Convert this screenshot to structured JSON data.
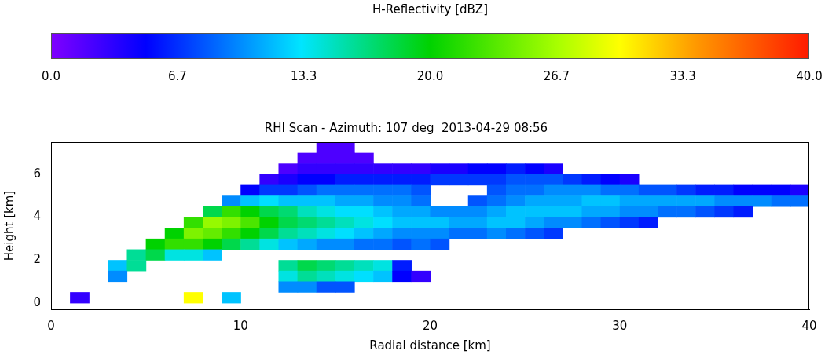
{
  "chart_data": {
    "type": "heatmap",
    "title": "RHI Scan - Azimuth: 107 deg  2013-04-29 08:56",
    "x_label": "Radial distance [km]",
    "y_label": "Height [km]",
    "xlim": [
      0,
      40
    ],
    "xticks": [
      0,
      10,
      20,
      30,
      40
    ],
    "ylim": [
      -0.3,
      7.5
    ],
    "yticks": [
      0,
      2,
      4,
      6
    ],
    "grid": false,
    "x": [
      0.5,
      1.5,
      2.5,
      3.5,
      4.5,
      5.5,
      6.5,
      7.5,
      8.5,
      9.5,
      10.5,
      11.5,
      12.5,
      13.5,
      14.5,
      15.5,
      16.5,
      17.5,
      18.5,
      19.5,
      20.5,
      21.5,
      22.5,
      23.5,
      24.5,
      25.5,
      26.5,
      27.5,
      28.5,
      29.5,
      30.5,
      31.5,
      32.5,
      33.5,
      34.5,
      35.5,
      36.5,
      37.5,
      38.5,
      39.5
    ],
    "y": [
      7.25,
      6.75,
      6.25,
      5.75,
      5.25,
      4.75,
      4.25,
      3.75,
      3.25,
      2.75,
      2.25,
      1.75,
      1.25,
      0.75,
      0.25
    ],
    "values": [
      [
        null,
        null,
        null,
        null,
        null,
        null,
        null,
        null,
        null,
        null,
        null,
        null,
        null,
        null,
        2,
        2,
        null,
        null,
        null,
        null,
        null,
        null,
        null,
        null,
        null,
        null,
        null,
        null,
        null,
        null,
        null,
        null,
        null,
        null,
        null,
        null,
        null,
        null,
        null,
        null
      ],
      [
        null,
        null,
        null,
        null,
        null,
        null,
        null,
        null,
        null,
        null,
        null,
        null,
        null,
        2,
        2,
        2,
        2,
        null,
        null,
        null,
        null,
        null,
        null,
        null,
        null,
        null,
        null,
        null,
        null,
        null,
        null,
        null,
        null,
        null,
        null,
        null,
        null,
        null,
        null,
        null
      ],
      [
        null,
        null,
        null,
        null,
        null,
        null,
        null,
        null,
        null,
        null,
        null,
        null,
        2,
        3,
        3,
        3,
        3,
        3,
        3,
        3,
        4,
        4,
        5,
        5,
        6,
        5,
        4,
        null,
        null,
        null,
        null,
        null,
        null,
        null,
        null,
        null,
        null,
        null,
        null,
        null
      ],
      [
        null,
        null,
        null,
        null,
        null,
        null,
        null,
        null,
        null,
        null,
        null,
        3,
        4,
        5,
        5,
        6,
        6,
        6,
        6,
        6,
        7,
        7,
        7,
        7,
        8,
        8,
        8,
        7,
        6,
        5,
        4,
        null,
        null,
        null,
        null,
        null,
        null,
        null,
        null,
        null
      ],
      [
        null,
        null,
        null,
        null,
        null,
        null,
        null,
        null,
        null,
        null,
        5,
        7,
        7,
        8,
        9,
        9,
        9,
        9,
        9,
        8,
        null,
        null,
        null,
        8,
        9,
        9,
        10,
        10,
        10,
        9,
        9,
        8,
        8,
        7,
        6,
        6,
        5,
        5,
        5,
        4
      ],
      [
        null,
        null,
        null,
        null,
        null,
        null,
        null,
        null,
        null,
        10,
        12,
        13,
        12,
        12,
        12,
        11,
        11,
        10,
        10,
        9,
        null,
        null,
        8,
        9,
        10,
        11,
        11,
        11,
        12,
        12,
        11,
        11,
        11,
        11,
        11,
        10,
        10,
        10,
        9,
        9
      ],
      [
        null,
        null,
        null,
        null,
        null,
        null,
        null,
        null,
        18,
        22,
        20,
        18,
        17,
        15,
        14,
        13,
        13,
        12,
        11,
        11,
        10,
        10,
        10,
        11,
        12,
        12,
        12,
        12,
        11,
        11,
        10,
        10,
        9,
        9,
        8,
        7,
        6,
        null,
        null,
        null
      ],
      [
        null,
        null,
        null,
        null,
        null,
        null,
        null,
        22,
        26,
        25,
        23,
        20,
        18,
        17,
        16,
        15,
        14,
        13,
        12,
        12,
        12,
        11,
        11,
        12,
        12,
        11,
        10,
        10,
        9,
        8,
        7,
        6,
        null,
        null,
        null,
        null,
        null,
        null,
        null,
        null
      ],
      [
        null,
        null,
        null,
        null,
        null,
        null,
        20,
        25,
        24,
        22,
        20,
        18,
        16,
        15,
        14,
        13,
        12,
        11,
        10,
        10,
        10,
        9,
        9,
        10,
        9,
        8,
        7,
        null,
        null,
        null,
        null,
        null,
        null,
        null,
        null,
        null,
        null,
        null,
        null,
        null
      ],
      [
        null,
        null,
        null,
        null,
        null,
        20,
        22,
        22,
        20,
        18,
        16,
        14,
        12,
        11,
        10,
        10,
        9,
        9,
        8,
        9,
        8,
        null,
        null,
        null,
        null,
        null,
        null,
        null,
        null,
        null,
        null,
        null,
        null,
        null,
        null,
        null,
        null,
        null,
        null,
        null
      ],
      [
        null,
        null,
        null,
        null,
        16,
        18,
        14,
        14,
        12,
        null,
        null,
        null,
        null,
        null,
        null,
        null,
        null,
        null,
        null,
        null,
        null,
        null,
        null,
        null,
        null,
        null,
        null,
        null,
        null,
        null,
        null,
        null,
        null,
        null,
        null,
        null,
        null,
        null,
        null,
        null
      ],
      [
        null,
        null,
        null,
        12,
        16,
        null,
        null,
        null,
        null,
        null,
        null,
        null,
        16,
        18,
        17,
        16,
        15,
        14,
        6,
        null,
        null,
        null,
        null,
        null,
        null,
        null,
        null,
        null,
        null,
        null,
        null,
        null,
        null,
        null,
        null,
        null,
        null,
        null,
        null,
        null
      ],
      [
        null,
        null,
        null,
        10,
        null,
        null,
        null,
        null,
        null,
        null,
        null,
        null,
        14,
        16,
        15,
        14,
        13,
        12,
        5,
        3,
        null,
        null,
        null,
        null,
        null,
        null,
        null,
        null,
        null,
        null,
        null,
        null,
        null,
        null,
        null,
        null,
        null,
        null,
        null,
        null
      ],
      [
        null,
        null,
        null,
        null,
        null,
        null,
        null,
        null,
        null,
        null,
        null,
        null,
        10,
        10,
        8,
        8,
        null,
        null,
        null,
        null,
        null,
        null,
        null,
        null,
        null,
        null,
        null,
        null,
        null,
        null,
        null,
        null,
        null,
        null,
        null,
        null,
        null,
        null,
        null,
        null
      ],
      [
        null,
        3,
        null,
        null,
        null,
        null,
        null,
        30,
        null,
        12,
        null,
        null,
        null,
        null,
        null,
        null,
        null,
        null,
        null,
        null,
        null,
        null,
        null,
        null,
        null,
        null,
        null,
        null,
        null,
        null,
        null,
        null,
        null,
        null,
        null,
        null,
        null,
        null,
        null,
        null
      ]
    ],
    "colorbar": {
      "label": "H-Reflectivity [dBZ]",
      "range": [
        0,
        40
      ],
      "ticks": [
        {
          "value": 0,
          "label": "0.0"
        },
        {
          "value": 6.667,
          "label": "6.7"
        },
        {
          "value": 13.333,
          "label": "13.3"
        },
        {
          "value": 20,
          "label": "20.0"
        },
        {
          "value": 26.667,
          "label": "26.7"
        },
        {
          "value": 33.333,
          "label": "33.3"
        },
        {
          "value": 40,
          "label": "40.0"
        }
      ]
    }
  }
}
